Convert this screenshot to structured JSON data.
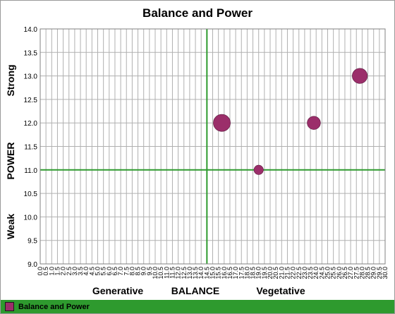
{
  "colors": {
    "bubble": "#9b2e6a",
    "refline": "#2e9a2e",
    "grid": "#b0b0b0",
    "legend_bg": "#2e9a2e"
  },
  "chart_data": {
    "type": "scatter",
    "bubble": true,
    "title": "Balance and Power",
    "xlabel": "BALANCE",
    "ylabel": "POWER",
    "x_category_labels": [
      "Generative",
      "Vegetative"
    ],
    "y_category_labels": [
      "Strong",
      "Weak"
    ],
    "xlim": [
      0.0,
      30.0
    ],
    "ylim": [
      9.0,
      14.0
    ],
    "x_tick_step": 0.5,
    "y_tick_step": 0.5,
    "x_ref": 14.5,
    "y_ref": 11.0,
    "grid": true,
    "legend_position": "bottom",
    "series": [
      {
        "name": "Balance and Power",
        "points": [
          {
            "x": 15.8,
            "y": 12.0,
            "size": 3
          },
          {
            "x": 19.0,
            "y": 11.0,
            "size": 1
          },
          {
            "x": 23.8,
            "y": 12.0,
            "size": 2
          },
          {
            "x": 27.8,
            "y": 13.0,
            "size": 2.5
          }
        ]
      }
    ]
  }
}
